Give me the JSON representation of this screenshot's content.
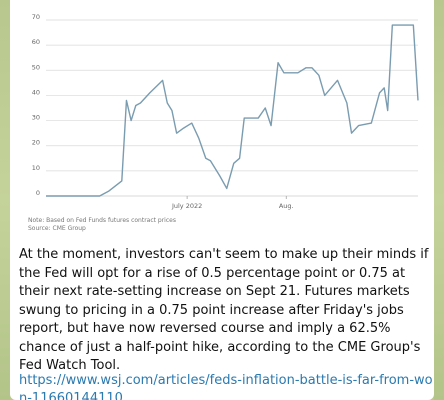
{
  "chart_data": {
    "type": "line",
    "title": "",
    "xlabel": "",
    "ylabel": "",
    "ylim": [
      0,
      70
    ],
    "yticks": [
      0,
      10,
      20,
      30,
      40,
      50,
      60,
      70
    ],
    "x_tick_labels": [
      {
        "label": "July 2022",
        "x": 2022.496
      },
      {
        "label": "Aug.",
        "x": 2022.581
      }
    ],
    "grid": true,
    "series": [
      {
        "name": "",
        "color": "#7a9cb0",
        "points": [
          [
            2022.375,
            0
          ],
          [
            2022.386,
            0
          ],
          [
            2022.398,
            0
          ],
          [
            2022.41,
            0
          ],
          [
            2022.421,
            0
          ],
          [
            2022.429,
            2
          ],
          [
            2022.44,
            6
          ],
          [
            2022.444,
            38
          ],
          [
            2022.448,
            30
          ],
          [
            2022.452,
            36
          ],
          [
            2022.456,
            37
          ],
          [
            2022.464,
            41
          ],
          [
            2022.475,
            46
          ],
          [
            2022.479,
            37
          ],
          [
            2022.483,
            34
          ],
          [
            2022.487,
            25
          ],
          [
            2022.493,
            27
          ],
          [
            2022.5,
            29
          ],
          [
            2022.506,
            23
          ],
          [
            2022.512,
            15
          ],
          [
            2022.516,
            14
          ],
          [
            2022.524,
            8
          ],
          [
            2022.53,
            3
          ],
          [
            2022.536,
            13
          ],
          [
            2022.541,
            15
          ],
          [
            2022.545,
            31
          ],
          [
            2022.553,
            31
          ],
          [
            2022.557,
            31
          ],
          [
            2022.563,
            35
          ],
          [
            2022.568,
            28
          ],
          [
            2022.574,
            53
          ],
          [
            2022.579,
            49
          ],
          [
            2022.585,
            49
          ],
          [
            2022.591,
            49
          ],
          [
            2022.598,
            51
          ],
          [
            2022.603,
            51
          ],
          [
            2022.609,
            48
          ],
          [
            2022.614,
            40
          ],
          [
            2022.625,
            46
          ],
          [
            2022.633,
            37
          ],
          [
            2022.637,
            25
          ],
          [
            2022.643,
            28
          ],
          [
            2022.654,
            29
          ],
          [
            2022.661,
            41
          ],
          [
            2022.665,
            43
          ],
          [
            2022.668,
            34
          ],
          [
            2022.672,
            68
          ],
          [
            2022.69,
            68
          ],
          [
            2022.694,
            38
          ]
        ]
      }
    ]
  },
  "chart_notes": {
    "note": "Note: Based on Fed Funds futures contract prices",
    "source": "Source: CME Group"
  },
  "message": {
    "text": "At the moment, investors can't seem to make up their minds if the Fed will opt for a rise of 0.5 percentage point or 0.75 at their next rate-setting increase on Sept 21. Futures markets swung to pricing in a 0.75 point increase after Friday's jobs report, but have now reversed course and imply a 62.5% chance of just a half-point hike, according to the CME Group's Fed Watch Tool.",
    "link": "https://www.wsj.com/articles/feds-inflation-battle-is-far-from-won-11660144110"
  },
  "colors": {
    "line": "#7a9cb0",
    "grid": "#d9d9d9",
    "link": "#2a7ab0",
    "background": "#b9c98f"
  }
}
